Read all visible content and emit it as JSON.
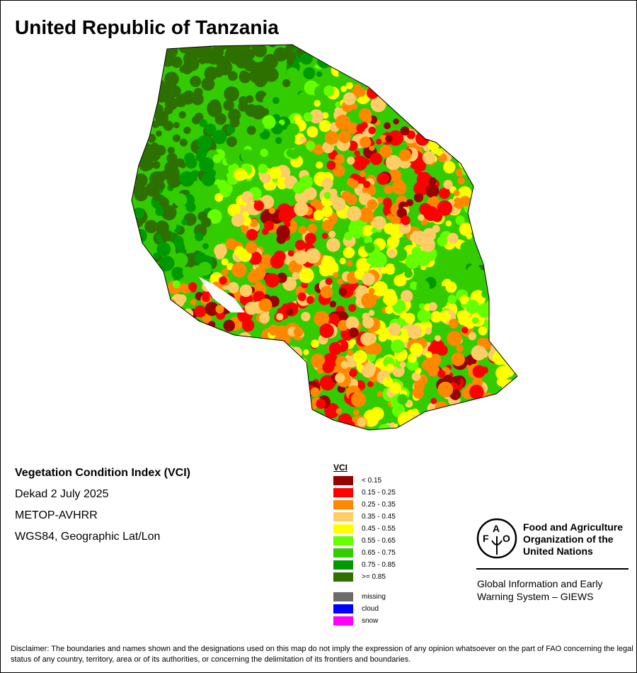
{
  "title": "United Republic of Tanzania",
  "info": {
    "index": "Vegetation Condition Index (VCI)",
    "period": "Dekad 2 July 2025",
    "sensor": "METOP-AVHRR",
    "projection": "WGS84, Geographic Lat/Lon"
  },
  "legend": {
    "title": "VCI",
    "items": [
      {
        "label": "< 0.15",
        "color": "#990000"
      },
      {
        "label": "0.15 - 0.25",
        "color": "#ff0000"
      },
      {
        "label": "0.25 - 0.35",
        "color": "#ff8800"
      },
      {
        "label": "0.35 - 0.45",
        "color": "#ffcc66"
      },
      {
        "label": "0.45 - 0.55",
        "color": "#ffff00"
      },
      {
        "label": "0.55 - 0.65",
        "color": "#66ff00"
      },
      {
        "label": "0.65 - 0.75",
        "color": "#33cc00"
      },
      {
        "label": "0.75 - 0.85",
        "color": "#009900"
      },
      {
        "label": ">= 0.85",
        "color": "#2d7000"
      }
    ],
    "extra": [
      {
        "label": "missing",
        "color": "#6b6b6b"
      },
      {
        "label": "cloud",
        "color": "#0000ff"
      },
      {
        "label": "snow",
        "color": "#ff00ff"
      }
    ]
  },
  "logo": {
    "letters": "FAO",
    "motto": "FIAT PANIS",
    "name_lines": [
      "Food and Agriculture",
      "Organization of the",
      "United Nations"
    ]
  },
  "giews": [
    "Global Information and Early",
    "Warning System – GIEWS"
  ],
  "disclaimer": "Disclaimer: The boundaries and names shown and the designations used on this map do not imply the expression of any opinion whatsoever on the part of FAO concerning the legal status of any country, territory, area or of its authorities, or concerning the delimitation of its frontiers and boundaries."
}
